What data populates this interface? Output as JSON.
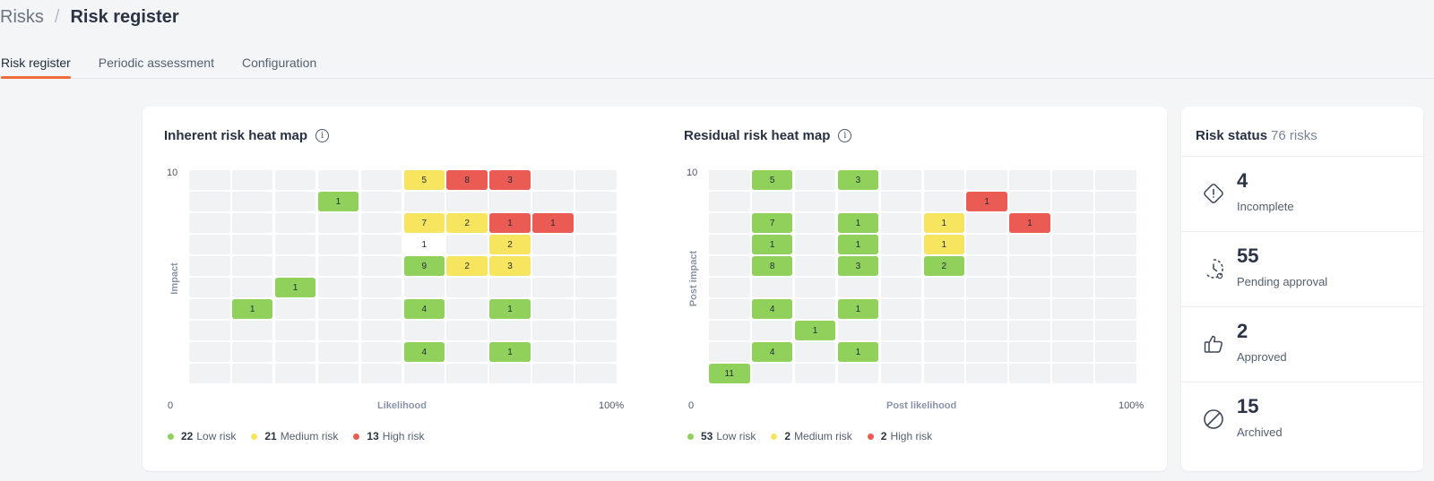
{
  "breadcrumb": {
    "root": "Risks",
    "separator": "/",
    "current": "Risk register"
  },
  "tabs": [
    {
      "label": "Risk register",
      "active": true
    },
    {
      "label": "Periodic assessment",
      "active": false
    },
    {
      "label": "Configuration",
      "active": false
    }
  ],
  "colors": {
    "low": "#8fd15a",
    "medium": "#f7e45f",
    "high": "#ea5b53",
    "empty": "#f1f2f4",
    "accent": "#ef6b3a",
    "white": "#ffffff"
  },
  "inherent": {
    "title": "Inherent risk heat map",
    "y_label": "Impact",
    "x_label": "Likelihood",
    "y_max": "10",
    "origin": "0",
    "x_max": "100%",
    "legend": [
      {
        "count": "22",
        "label": "Low risk",
        "level": "low"
      },
      {
        "count": "21",
        "label": "Medium risk",
        "level": "medium"
      },
      {
        "count": "13",
        "label": "High risk",
        "level": "high"
      }
    ]
  },
  "residual": {
    "title": "Residual risk heat map",
    "y_label": "Post impact",
    "x_label": "Post likelihood",
    "y_max": "10",
    "origin": "0",
    "x_max": "100%",
    "legend": [
      {
        "count": "53",
        "label": "Low risk",
        "level": "low"
      },
      {
        "count": "2",
        "label": "Medium risk",
        "level": "medium"
      },
      {
        "count": "2",
        "label": "High risk",
        "level": "high"
      }
    ]
  },
  "chart_data": [
    {
      "type": "heatmap",
      "title": "Inherent risk heat map",
      "xlabel": "Likelihood",
      "ylabel": "Impact",
      "grid": {
        "columns": 10,
        "rows": 10
      },
      "cells": [
        {
          "col": 6,
          "row": 10,
          "value": "5",
          "level": "medium"
        },
        {
          "col": 7,
          "row": 10,
          "value": "8",
          "level": "high"
        },
        {
          "col": 8,
          "row": 10,
          "value": "3",
          "level": "high"
        },
        {
          "col": 4,
          "row": 9,
          "value": "1",
          "level": "low"
        },
        {
          "col": 6,
          "row": 8,
          "value": "7",
          "level": "medium"
        },
        {
          "col": 7,
          "row": 8,
          "value": "2",
          "level": "medium"
        },
        {
          "col": 8,
          "row": 8,
          "value": "1",
          "level": "high"
        },
        {
          "col": 9,
          "row": 8,
          "value": "1",
          "level": "high"
        },
        {
          "col": 6,
          "row": 7,
          "value": "1",
          "level": "white"
        },
        {
          "col": 8,
          "row": 7,
          "value": "2",
          "level": "medium"
        },
        {
          "col": 6,
          "row": 6,
          "value": "9",
          "level": "low"
        },
        {
          "col": 7,
          "row": 6,
          "value": "2",
          "level": "medium"
        },
        {
          "col": 8,
          "row": 6,
          "value": "3",
          "level": "medium"
        },
        {
          "col": 3,
          "row": 5,
          "value": "1",
          "level": "low"
        },
        {
          "col": 2,
          "row": 4,
          "value": "1",
          "level": "low"
        },
        {
          "col": 6,
          "row": 4,
          "value": "4",
          "level": "low"
        },
        {
          "col": 8,
          "row": 4,
          "value": "1",
          "level": "low"
        },
        {
          "col": 6,
          "row": 2,
          "value": "4",
          "level": "low"
        },
        {
          "col": 8,
          "row": 2,
          "value": "1",
          "level": "low"
        }
      ]
    },
    {
      "type": "heatmap",
      "title": "Residual risk heat map",
      "xlabel": "Post likelihood",
      "ylabel": "Post impact",
      "grid": {
        "columns": 10,
        "rows": 10
      },
      "cells": [
        {
          "col": 2,
          "row": 10,
          "value": "5",
          "level": "low"
        },
        {
          "col": 4,
          "row": 10,
          "value": "3",
          "level": "low"
        },
        {
          "col": 7,
          "row": 9,
          "value": "1",
          "level": "high"
        },
        {
          "col": 2,
          "row": 8,
          "value": "7",
          "level": "low"
        },
        {
          "col": 4,
          "row": 8,
          "value": "1",
          "level": "low"
        },
        {
          "col": 6,
          "row": 8,
          "value": "1",
          "level": "medium"
        },
        {
          "col": 8,
          "row": 8,
          "value": "1",
          "level": "high"
        },
        {
          "col": 2,
          "row": 7,
          "value": "1",
          "level": "low"
        },
        {
          "col": 4,
          "row": 7,
          "value": "1",
          "level": "low"
        },
        {
          "col": 6,
          "row": 7,
          "value": "1",
          "level": "medium"
        },
        {
          "col": 2,
          "row": 6,
          "value": "8",
          "level": "low"
        },
        {
          "col": 4,
          "row": 6,
          "value": "3",
          "level": "low"
        },
        {
          "col": 6,
          "row": 6,
          "value": "2",
          "level": "low"
        },
        {
          "col": 2,
          "row": 4,
          "value": "4",
          "level": "low"
        },
        {
          "col": 4,
          "row": 4,
          "value": "1",
          "level": "low"
        },
        {
          "col": 3,
          "row": 3,
          "value": "1",
          "level": "low"
        },
        {
          "col": 2,
          "row": 2,
          "value": "4",
          "level": "low"
        },
        {
          "col": 4,
          "row": 2,
          "value": "1",
          "level": "low"
        },
        {
          "col": 1,
          "row": 1,
          "value": "11",
          "level": "low"
        }
      ]
    }
  ],
  "status": {
    "title": "Risk status",
    "total": "76 risks",
    "items": [
      {
        "value": "4",
        "label": "Incomplete",
        "icon": "alert-diamond-icon"
      },
      {
        "value": "55",
        "label": "Pending approval",
        "icon": "pending-clock-icon"
      },
      {
        "value": "2",
        "label": "Approved",
        "icon": "thumbs-up-icon"
      },
      {
        "value": "15",
        "label": "Archived",
        "icon": "archived-slash-icon"
      }
    ]
  }
}
